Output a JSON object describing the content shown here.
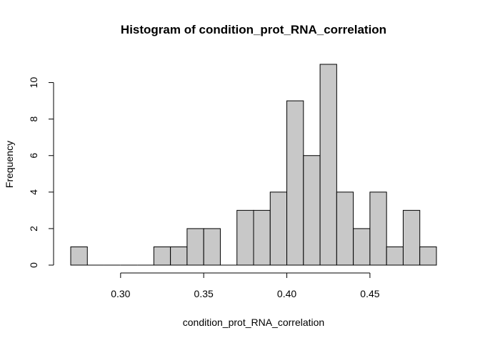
{
  "chart_data": {
    "type": "bar",
    "title": "Histogram of condition_prot_RNA_correlation",
    "xlabel": "condition_prot_RNA_correlation",
    "ylabel": "Frequency",
    "bin_width": 0.01,
    "bin_starts": [
      0.27,
      0.28,
      0.29,
      0.3,
      0.31,
      0.32,
      0.33,
      0.34,
      0.35,
      0.36,
      0.37,
      0.38,
      0.39,
      0.4,
      0.41,
      0.42,
      0.43,
      0.44,
      0.45,
      0.46,
      0.47,
      0.48
    ],
    "values": [
      1,
      0,
      0,
      0,
      0,
      1,
      1,
      2,
      2,
      0,
      3,
      3,
      4,
      9,
      6,
      11,
      4,
      2,
      4,
      1,
      3,
      1
    ],
    "xlim": [
      0.27,
      0.49
    ],
    "ylim": [
      0,
      11
    ],
    "x_ticks": [
      0.3,
      0.35,
      0.4,
      0.45
    ],
    "x_tick_labels": [
      "0.30",
      "0.35",
      "0.40",
      "0.45"
    ],
    "y_ticks": [
      0,
      2,
      4,
      6,
      8,
      10
    ],
    "y_tick_labels": [
      "0",
      "2",
      "4",
      "6",
      "8",
      "10"
    ],
    "bar_color": "#c8c8c8",
    "grid": false
  }
}
